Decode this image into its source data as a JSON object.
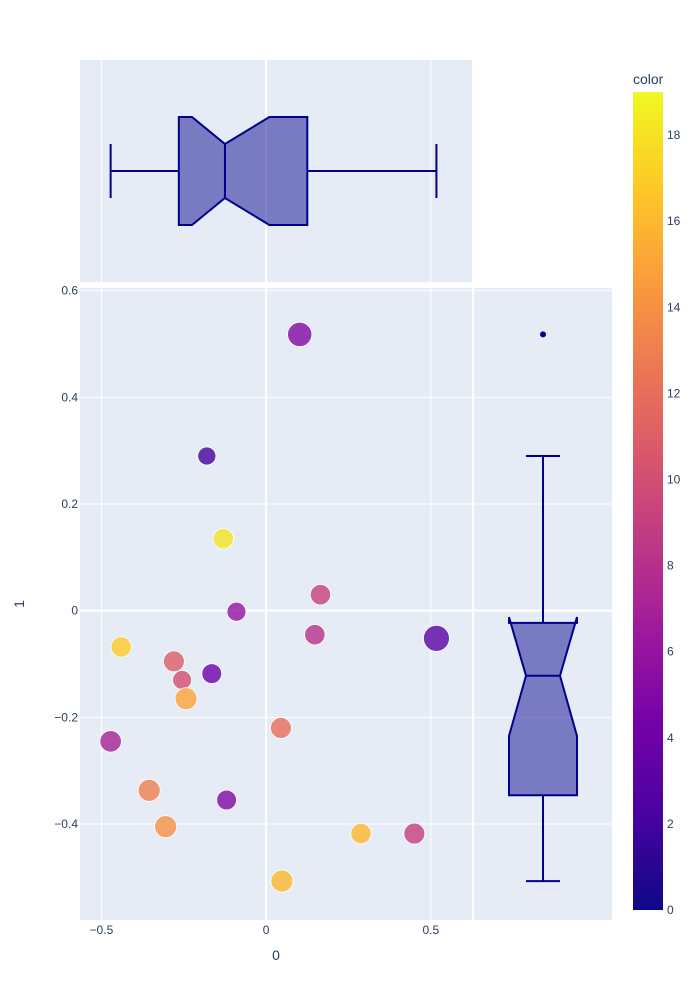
{
  "chart_data": {
    "type": "scatter",
    "xlabel": "0",
    "ylabel": "1",
    "xlim": [
      -0.565,
      1.05
    ],
    "ylim": [
      -0.58,
      0.605
    ],
    "x_ticks": [
      -0.5,
      0,
      0.5
    ],
    "x_tick_labels": [
      "−0.5",
      "0",
      "0.5"
    ],
    "y_ticks": [
      -0.4,
      -0.2,
      0,
      0.2,
      0.4,
      0.6
    ],
    "y_tick_labels": [
      "−0.4",
      "−0.2",
      "0",
      "0.2",
      "0.4",
      "0.6"
    ],
    "grid": true,
    "colorscale": "Plasma",
    "colorbar": {
      "title": "color",
      "range": [
        0,
        19
      ],
      "ticks": [
        0,
        2,
        4,
        6,
        8,
        10,
        12,
        14,
        16,
        18
      ],
      "tick_labels": [
        "0",
        "2",
        "4",
        "6",
        "8",
        "10",
        "12",
        "14",
        "16",
        "18"
      ]
    },
    "points": [
      {
        "x": 0.517,
        "y": -0.052,
        "color": 3,
        "size": 0.5
      },
      {
        "x": 0.102,
        "y": 0.518,
        "color": 5,
        "size": 0.44
      },
      {
        "x": -0.18,
        "y": 0.29,
        "color": 2,
        "size": 0.22
      },
      {
        "x": -0.13,
        "y": 0.135,
        "color": 18,
        "size": 0.3
      },
      {
        "x": -0.09,
        "y": -0.002,
        "color": 6,
        "size": 0.25
      },
      {
        "x": 0.165,
        "y": 0.03,
        "color": 9,
        "size": 0.3
      },
      {
        "x": 0.148,
        "y": -0.045,
        "color": 8,
        "size": 0.3
      },
      {
        "x": -0.44,
        "y": -0.068,
        "color": 17,
        "size": 0.3
      },
      {
        "x": -0.28,
        "y": -0.095,
        "color": 11,
        "size": 0.32
      },
      {
        "x": -0.165,
        "y": -0.118,
        "color": 4,
        "size": 0.28
      },
      {
        "x": -0.255,
        "y": -0.13,
        "color": 10,
        "size": 0.25
      },
      {
        "x": -0.243,
        "y": -0.165,
        "color": 15,
        "size": 0.36
      },
      {
        "x": -0.472,
        "y": -0.245,
        "color": 7,
        "size": 0.34
      },
      {
        "x": 0.045,
        "y": -0.22,
        "color": 12,
        "size": 0.32
      },
      {
        "x": -0.355,
        "y": -0.337,
        "color": 13,
        "size": 0.36
      },
      {
        "x": -0.12,
        "y": -0.355,
        "color": 5,
        "size": 0.28
      },
      {
        "x": -0.305,
        "y": -0.405,
        "color": 14,
        "size": 0.36
      },
      {
        "x": 0.288,
        "y": -0.418,
        "color": 16,
        "size": 0.3
      },
      {
        "x": 0.45,
        "y": -0.418,
        "color": 9,
        "size": 0.32
      },
      {
        "x": 0.048,
        "y": -0.507,
        "color": 16,
        "size": 0.36
      }
    ],
    "marginal_x_box": {
      "min": -0.472,
      "q1": -0.265,
      "median": -0.125,
      "q3": 0.125,
      "max": 0.517,
      "notch_low": -0.225,
      "notch_high": 0.01
    },
    "marginal_y_box": {
      "min": -0.507,
      "q1": -0.346,
      "median": -0.122,
      "q3": -0.023,
      "max": 0.29,
      "notch_low": -0.235,
      "notch_high": -0.012,
      "outlier": 0.518
    }
  }
}
